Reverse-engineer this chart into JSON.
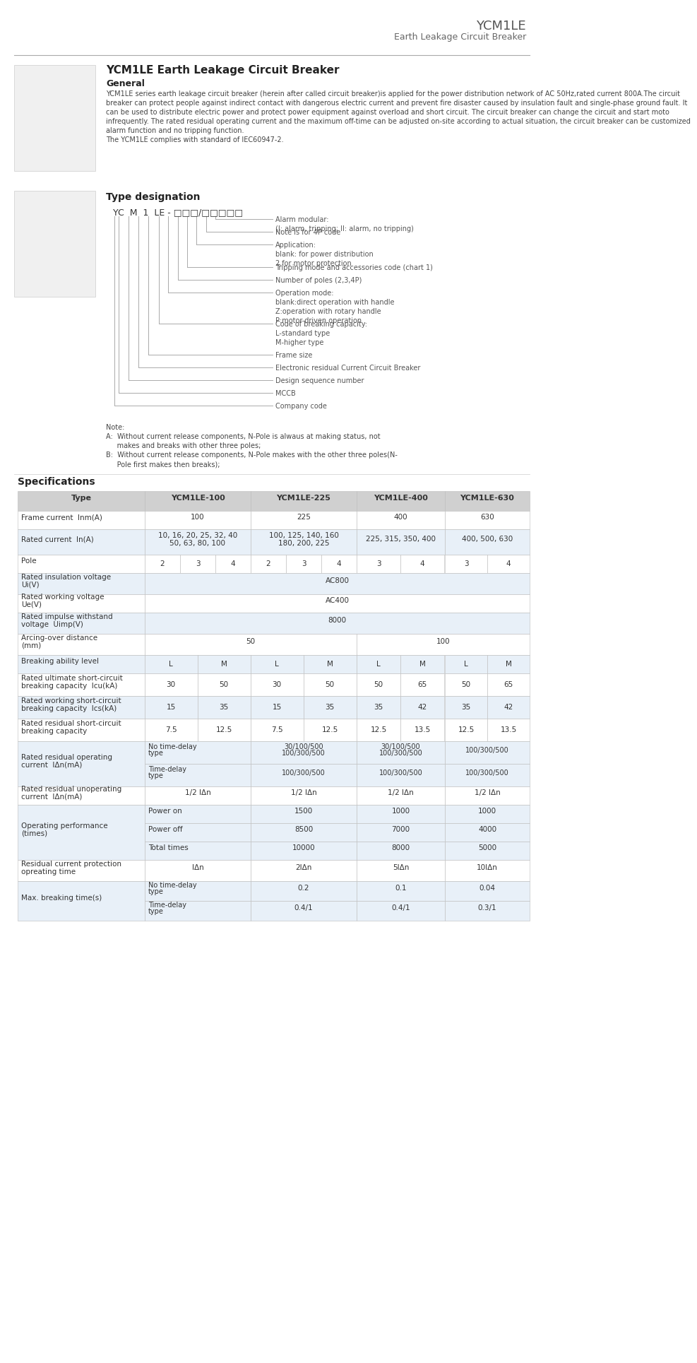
{
  "header_title": "YCM1LE",
  "header_subtitle": "Earth Leakage Circuit Breaker",
  "main_title": "YCM1LE Earth Leakage Circuit Breaker",
  "section_general": "General",
  "general_lines": [
    "YCM1LE series earth leakage circuit breaker (herein after called circuit breaker)is applied for the power distribution network of AC 50Hz,rated current 800A.The circuit",
    "breaker can protect people against indirect contact with dangerous electric current and prevent fire disaster caused by insulation fault and single-phase ground fault. It",
    "can be used to distribute electric power and protect power equipment against overload and short circuit. The circuit breaker can change the circuit and start moto",
    "infrequently. The rated residual operating current and the maximum off-time can be adjusted on-site according to actual situation, the circuit breaker can be customized",
    "alarm function and no tripping function.",
    "The YCM1LE complies with standard of IEC60947-2."
  ],
  "section_type": "Type designation",
  "note_lines": [
    "Note:",
    "A:  Without current release components, N-Pole is alwaus at making status, not",
    "     makes and breaks with other three poles;",
    "B:  Without current release components, N-Pole makes with the other three poles(N-",
    "     Pole first makes then breaks);"
  ],
  "section_specs": "Specifications",
  "table_headers": [
    "Type",
    "YCM1LE-100",
    "YCM1LE-225",
    "YCM1LE-400",
    "YCM1LE-630"
  ],
  "bg_color": "#ffffff",
  "line_color": "#cccccc",
  "bracket_color": "#aaaaaa",
  "label_color": "#555555",
  "text_color": "#333333",
  "header_text_color": "#666666",
  "alt_bg": "#e8f0f8",
  "table_header_bg": "#d8d8d8"
}
